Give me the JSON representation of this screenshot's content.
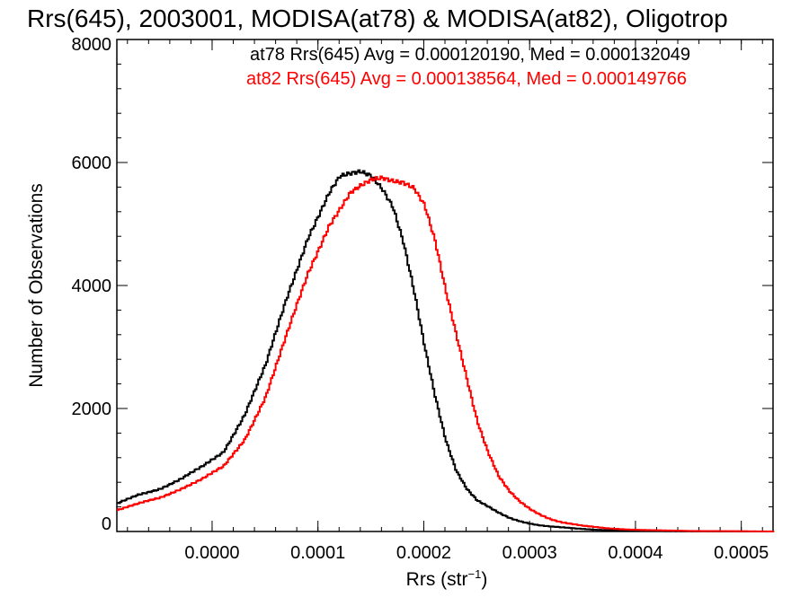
{
  "chart_data": {
    "type": "line",
    "title": "Rrs(645), 2003001, MODISA(at78) & MODISA(at82), Oligotrop",
    "xlabel_main": "Rrs (str",
    "xlabel_sup": "−1",
    "xlabel_close": ")",
    "ylabel": "Number of Observations",
    "xlim": [
      -9e-05,
      0.00053
    ],
    "ylim": [
      0,
      8000
    ],
    "x_ticks": [
      0.0,
      0.0001,
      0.0002,
      0.0003,
      0.0004,
      0.0005
    ],
    "x_tick_labels": [
      "0.0000",
      "0.0001",
      "0.0002",
      "0.0003",
      "0.0004",
      "0.0005"
    ],
    "y_ticks": [
      0,
      2000,
      4000,
      6000,
      8000
    ],
    "y_tick_labels": [
      "0",
      "2000",
      "4000",
      "6000",
      "8000"
    ],
    "legend": [
      {
        "text": "at78 Rrs(645) Avg = 0.000120190, Med = 0.000132049",
        "color": "#000000"
      },
      {
        "text": "at82 Rrs(645) Avg = 0.000138564, Med = 0.000149766",
        "color": "#ff0000"
      }
    ],
    "series": [
      {
        "color": "#000000",
        "points": [
          [
            -9e-05,
            450
          ],
          [
            -7e-05,
            600
          ],
          [
            -5e-05,
            700
          ],
          [
            -3e-05,
            850
          ],
          [
            -1e-05,
            1050
          ],
          [
            1e-05,
            1300
          ],
          [
            3e-05,
            1900
          ],
          [
            5e-05,
            2700
          ],
          [
            7e-05,
            3800
          ],
          [
            9e-05,
            4800
          ],
          [
            0.00011,
            5500
          ],
          [
            0.00012,
            5750
          ],
          [
            0.00013,
            5800
          ],
          [
            0.00014,
            5850
          ],
          [
            0.00015,
            5800
          ],
          [
            0.00016,
            5600
          ],
          [
            0.00017,
            5300
          ],
          [
            0.00018,
            4700
          ],
          [
            0.00019,
            3900
          ],
          [
            0.0002,
            3000
          ],
          [
            0.00021,
            2200
          ],
          [
            0.00022,
            1500
          ],
          [
            0.00023,
            1000
          ],
          [
            0.00024,
            700
          ],
          [
            0.00025,
            500
          ],
          [
            0.00026,
            400
          ],
          [
            0.00027,
            300
          ],
          [
            0.00028,
            220
          ],
          [
            0.00029,
            170
          ],
          [
            0.0003,
            130
          ],
          [
            0.00031,
            100
          ],
          [
            0.00032,
            80
          ],
          [
            0.00034,
            50
          ],
          [
            0.00036,
            30
          ],
          [
            0.00038,
            20
          ],
          [
            0.0004,
            12
          ],
          [
            0.00042,
            8
          ],
          [
            0.00045,
            4
          ],
          [
            0.00048,
            2
          ],
          [
            0.00053,
            0
          ]
        ]
      },
      {
        "color": "#ff0000",
        "points": [
          [
            -9e-05,
            350
          ],
          [
            -7e-05,
            450
          ],
          [
            -5e-05,
            550
          ],
          [
            -3e-05,
            700
          ],
          [
            -1e-05,
            850
          ],
          [
            1e-05,
            1050
          ],
          [
            3e-05,
            1500
          ],
          [
            5e-05,
            2200
          ],
          [
            7e-05,
            3200
          ],
          [
            9e-05,
            4200
          ],
          [
            0.00011,
            5000
          ],
          [
            0.00013,
            5500
          ],
          [
            0.00015,
            5700
          ],
          [
            0.00016,
            5750
          ],
          [
            0.00017,
            5720
          ],
          [
            0.00018,
            5700
          ],
          [
            0.00019,
            5600
          ],
          [
            0.0002,
            5300
          ],
          [
            0.00021,
            4700
          ],
          [
            0.00022,
            3900
          ],
          [
            0.00023,
            3200
          ],
          [
            0.00024,
            2500
          ],
          [
            0.00025,
            1800
          ],
          [
            0.00026,
            1300
          ],
          [
            0.00027,
            900
          ],
          [
            0.00028,
            650
          ],
          [
            0.00029,
            480
          ],
          [
            0.0003,
            360
          ],
          [
            0.00031,
            270
          ],
          [
            0.00032,
            200
          ],
          [
            0.00033,
            150
          ],
          [
            0.00034,
            120
          ],
          [
            0.00035,
            90
          ],
          [
            0.00037,
            55
          ],
          [
            0.00039,
            35
          ],
          [
            0.00041,
            22
          ],
          [
            0.00043,
            14
          ],
          [
            0.00046,
            8
          ],
          [
            0.00049,
            4
          ],
          [
            0.00053,
            1
          ]
        ]
      }
    ]
  }
}
